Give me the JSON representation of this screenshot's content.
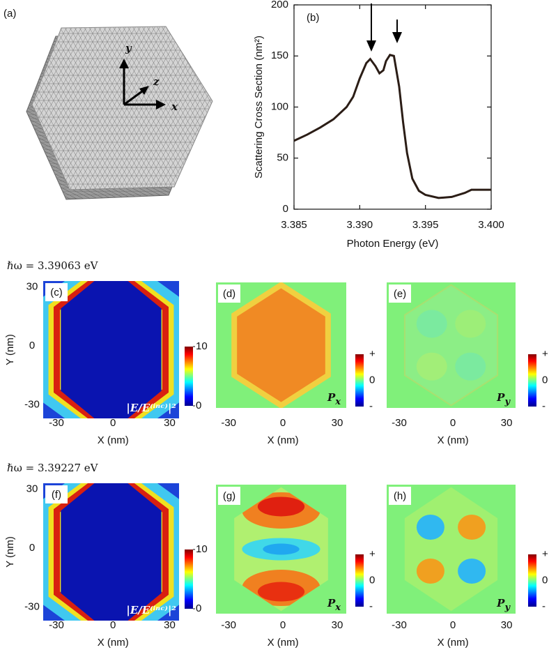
{
  "illustration": {
    "label": "(a)",
    "axes": [
      "y",
      "z",
      "x"
    ]
  },
  "chart_data": [
    {
      "type": "line",
      "panel_label": "(b)",
      "xlabel": "Photon Energy (eV)",
      "ylabel": "Scattering Cross Section (nm²)",
      "x": [
        3.385,
        3.386,
        3.387,
        3.388,
        3.389,
        3.3895,
        3.39,
        3.3905,
        3.3908,
        3.3912,
        3.3915,
        3.3918,
        3.392,
        3.3923,
        3.3926,
        3.393,
        3.3933,
        3.3936,
        3.394,
        3.3945,
        3.395,
        3.396,
        3.397,
        3.398,
        3.3985,
        3.399,
        3.4
      ],
      "values": [
        67,
        73,
        80,
        88,
        100,
        110,
        128,
        143,
        147,
        140,
        133,
        136,
        145,
        151,
        150,
        120,
        85,
        55,
        30,
        18,
        14,
        11,
        12,
        16,
        19,
        19,
        19
      ],
      "color": "#2b1d16",
      "xlim": [
        3.385,
        3.4
      ],
      "xticks": [
        3.385,
        {
          "value": 3.39,
          "label": "3.390"
        },
        3.395,
        {
          "value": 3.4,
          "label": "3.400"
        }
      ],
      "ylim": [
        0,
        200
      ],
      "yticks": [
        0,
        50,
        100,
        150,
        200
      ]
    },
    {
      "type": "heatmap",
      "panel_label": "(c)",
      "heading": "ℏω = 3.39063 eV",
      "ylabel": "Y (nm)",
      "xlabel": "X (nm)",
      "field_label": "|E/E⁽ⁱⁿᶜ⁾|²",
      "xlim": [
        -37,
        35
      ],
      "ylim": [
        -37,
        33
      ],
      "xticks": [
        -30,
        0,
        30
      ],
      "yticks": [
        -30,
        0,
        30
      ],
      "clim": [
        0,
        10
      ],
      "cticks": [
        0,
        10
      ]
    },
    {
      "type": "heatmap",
      "panel_label": "(d)",
      "xlabel": "X (nm)",
      "field_symbol": "P",
      "field_subscript": "x",
      "xlim": [
        -37,
        35
      ],
      "ylim": [
        -37,
        33
      ],
      "xticks": [
        -30,
        0,
        30
      ],
      "colorbar_labels": [
        "+",
        "0",
        "-"
      ]
    },
    {
      "type": "heatmap",
      "panel_label": "(e)",
      "xlabel": "X (nm)",
      "field_symbol": "P",
      "field_subscript": "y",
      "xlim": [
        -37,
        35
      ],
      "ylim": [
        -37,
        33
      ],
      "xticks": [
        -30,
        0,
        30
      ],
      "colorbar_labels": [
        "+",
        "0",
        "-"
      ]
    },
    {
      "type": "heatmap",
      "panel_label": "(f)",
      "heading": "ℏω = 3.39227 eV",
      "ylabel": "Y (nm)",
      "xlabel": "X (nm)",
      "field_label": "|E/E⁽ⁱⁿᶜ⁾|²",
      "xlim": [
        -37,
        35
      ],
      "ylim": [
        -37,
        33
      ],
      "xticks": [
        -30,
        0,
        30
      ],
      "yticks": [
        -30,
        0,
        30
      ],
      "clim": [
        0,
        10
      ],
      "cticks": [
        0,
        10
      ]
    },
    {
      "type": "heatmap",
      "panel_label": "(g)",
      "xlabel": "X (nm)",
      "field_symbol": "P",
      "field_subscript": "x",
      "xlim": [
        -37,
        35
      ],
      "ylim": [
        -37,
        33
      ],
      "xticks": [
        -30,
        0,
        30
      ],
      "colorbar_labels": [
        "+",
        "0",
        "-"
      ]
    },
    {
      "type": "heatmap",
      "panel_label": "(h)",
      "xlabel": "X (nm)",
      "field_symbol": "P",
      "field_subscript": "y",
      "xlim": [
        -37,
        35
      ],
      "ylim": [
        -37,
        33
      ],
      "xticks": [
        -30,
        0,
        30
      ],
      "colorbar_labels": [
        "+",
        "0",
        "-"
      ]
    }
  ]
}
